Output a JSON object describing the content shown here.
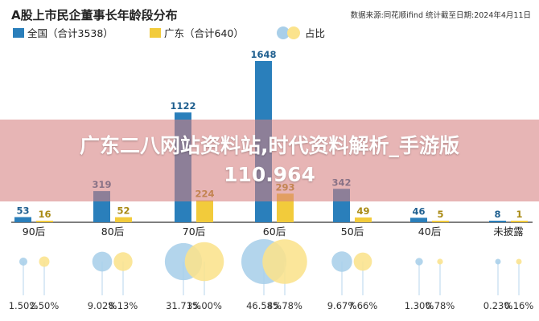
{
  "chart_data": {
    "type": "bar",
    "title": "A股上市民企董事长年龄段分布",
    "source": "数据来源:同花顺ifind   统计截至日期:2024年4月11日",
    "legend_position": "top-left",
    "categories": [
      "90后",
      "80后",
      "70后",
      "60后",
      "50后",
      "40后",
      "未披露"
    ],
    "series": [
      {
        "name": "全国（合计3538）",
        "color": "#2a7fbb",
        "values": [
          53,
          319,
          1122,
          1648,
          342,
          46,
          8
        ],
        "share_labels": [
          "1.50%",
          "9.02%",
          "31.71%",
          "46.58%",
          "9.67%",
          "1.30%",
          "0.23%"
        ],
        "shares": [
          1.5,
          9.02,
          31.71,
          46.58,
          9.67,
          1.3,
          0.23
        ]
      },
      {
        "name": "广东（合计640）",
        "color": "#f2cb3b",
        "values": [
          16,
          52,
          224,
          293,
          49,
          5,
          1
        ],
        "share_labels": [
          "2.50%",
          "8.13%",
          "35.00%",
          "45.78%",
          "7.66%",
          "0.78%",
          "0.16%"
        ],
        "shares": [
          2.5,
          8.13,
          35.0,
          45.78,
          7.66,
          0.78,
          0.16
        ]
      }
    ],
    "share_legend": "占比",
    "colors": {
      "national_bubble": "#a9cfe9",
      "guangdong_bubble": "#fbe38c",
      "stem": "#cfe3f2",
      "axis": "#333333"
    }
  },
  "overlay": {
    "line1": "广东二八网站资料站,时代资料解析_手游版",
    "line2": "110.964"
  }
}
